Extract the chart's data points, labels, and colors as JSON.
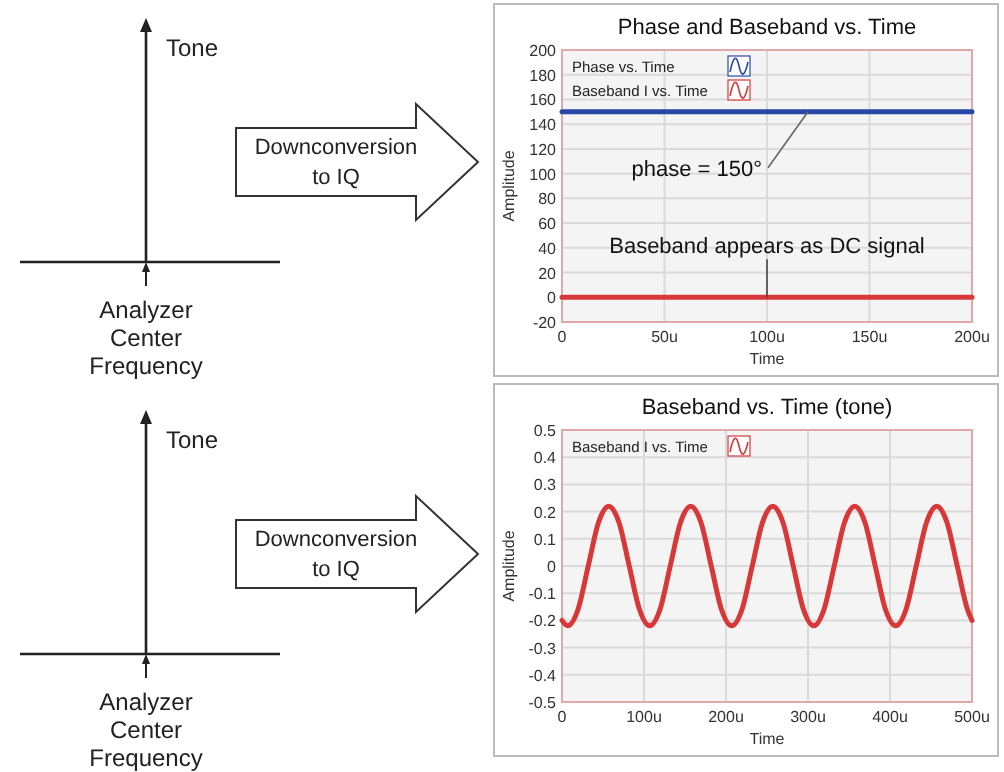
{
  "chart_data": [
    {
      "type": "other",
      "annotations": [
        "Tone",
        "Downconversion to IQ",
        "Analyzer Center Frequency"
      ]
    },
    {
      "type": "line",
      "title": "Phase and Baseband vs. Time",
      "xlabel": "Time",
      "ylabel": "Amplitude",
      "x": [
        0,
        200
      ],
      "xlim": [
        0,
        200
      ],
      "xticks": [
        0,
        {
          "value": 50,
          "label": "50u"
        },
        {
          "value": 100,
          "label": "100u"
        },
        {
          "value": 150,
          "label": "150u"
        },
        {
          "value": 200,
          "label": "200u"
        }
      ],
      "ylim": [
        -20,
        200
      ],
      "yticks": [
        -20,
        0,
        20,
        40,
        60,
        80,
        100,
        120,
        140,
        160,
        180,
        200
      ],
      "grid": true,
      "legend": "top left",
      "series": [
        {
          "name": "Phase vs. Time",
          "color": "#2848a8",
          "values": [
            150,
            150
          ]
        },
        {
          "name": "Baseband I vs. Time",
          "color": "#d83838",
          "values": [
            0,
            0
          ]
        }
      ],
      "annotations": [
        {
          "text": "phase = 150°",
          "x": 120,
          "y": 150
        },
        {
          "text": "Baseband appears as DC signal",
          "x": 100,
          "y": 0
        }
      ]
    },
    {
      "type": "other",
      "annotations": [
        "Tone",
        "Downconversion to IQ",
        "Analyzer Center Frequency"
      ]
    },
    {
      "type": "line",
      "title": "Baseband vs. Time (tone)",
      "xlabel": "Time",
      "ylabel": "Amplitude",
      "xlim": [
        0,
        500
      ],
      "xticks": [
        0,
        {
          "value": 100,
          "label": "100u"
        },
        {
          "value": 200,
          "label": "200u"
        },
        {
          "value": 300,
          "label": "300u"
        },
        {
          "value": 400,
          "label": "400u"
        },
        {
          "value": 500,
          "label": "500u"
        }
      ],
      "ylim": [
        -0.5,
        0.5
      ],
      "yticks": [
        -0.5,
        -0.4,
        -0.3,
        -0.2,
        -0.1,
        0,
        0.1,
        0.2,
        0.3,
        0.4,
        0.5
      ],
      "grid": true,
      "legend": "top left",
      "x": [
        0,
        7,
        19.5,
        32,
        44.5,
        57,
        69.5,
        82,
        94.5,
        107,
        119.5,
        132,
        144.5,
        157,
        169.5,
        182,
        194.5,
        207,
        219.5,
        232,
        244.5,
        257,
        269.5,
        282,
        294.5,
        307,
        319.5,
        332,
        344.5,
        357,
        369.5,
        382,
        394.5,
        407,
        419.5,
        432,
        444.5,
        457,
        469.5,
        482,
        494.5,
        500
      ],
      "series": [
        {
          "name": "Baseband I vs. Time",
          "color": "#d83838",
          "values": [
            -0.2,
            -0.22,
            -0.16,
            0,
            0.16,
            0.22,
            0.16,
            0,
            -0.16,
            -0.22,
            -0.16,
            0,
            0.16,
            0.22,
            0.16,
            0,
            -0.16,
            -0.22,
            -0.16,
            0,
            0.16,
            0.22,
            0.16,
            0,
            -0.16,
            -0.22,
            -0.16,
            0,
            0.16,
            0.22,
            0.16,
            0,
            -0.16,
            -0.22,
            -0.16,
            0,
            0.16,
            0.22,
            0.16,
            0,
            -0.16,
            -0.2
          ]
        }
      ]
    }
  ]
}
